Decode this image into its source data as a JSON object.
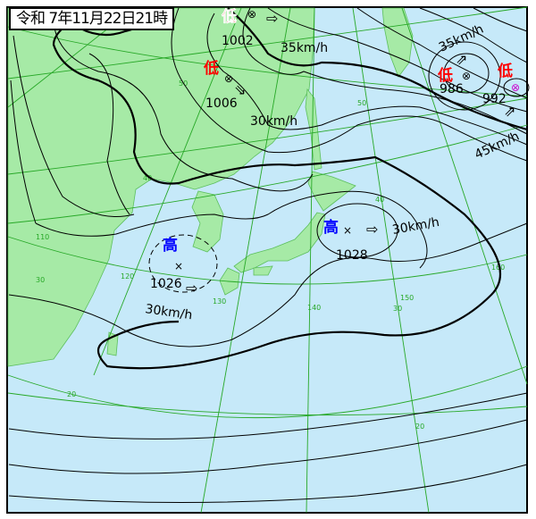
{
  "title": "令和 7年11月22日21時",
  "colors": {
    "sea": "#c6e9f9",
    "land": "#a6eaa6",
    "grid": "#27a827",
    "isobar": "#000000",
    "low_label": "#ff0000",
    "high_label": "#0000ff"
  },
  "systems": [
    {
      "type": "low",
      "label": "低",
      "pressure": "1002",
      "speed": "35km/h"
    },
    {
      "type": "low",
      "label": "低",
      "pressure": "1006",
      "speed": "30km/h"
    },
    {
      "type": "low",
      "label": "低",
      "pressure": "986",
      "speed": "35km/h"
    },
    {
      "type": "low",
      "label": "低",
      "pressure": "992",
      "speed": "45km/h"
    },
    {
      "type": "high",
      "label": "高",
      "pressure": "1028",
      "speed": "30km/h"
    },
    {
      "type": "high",
      "label": "高",
      "pressure": "1026",
      "speed": "30km/h"
    }
  ],
  "grid_labels": {
    "lat": [
      "50",
      "50",
      "40",
      "40",
      "30",
      "30",
      "20",
      "20"
    ],
    "lon": [
      "110",
      "120",
      "130",
      "140",
      "150",
      "160"
    ]
  }
}
